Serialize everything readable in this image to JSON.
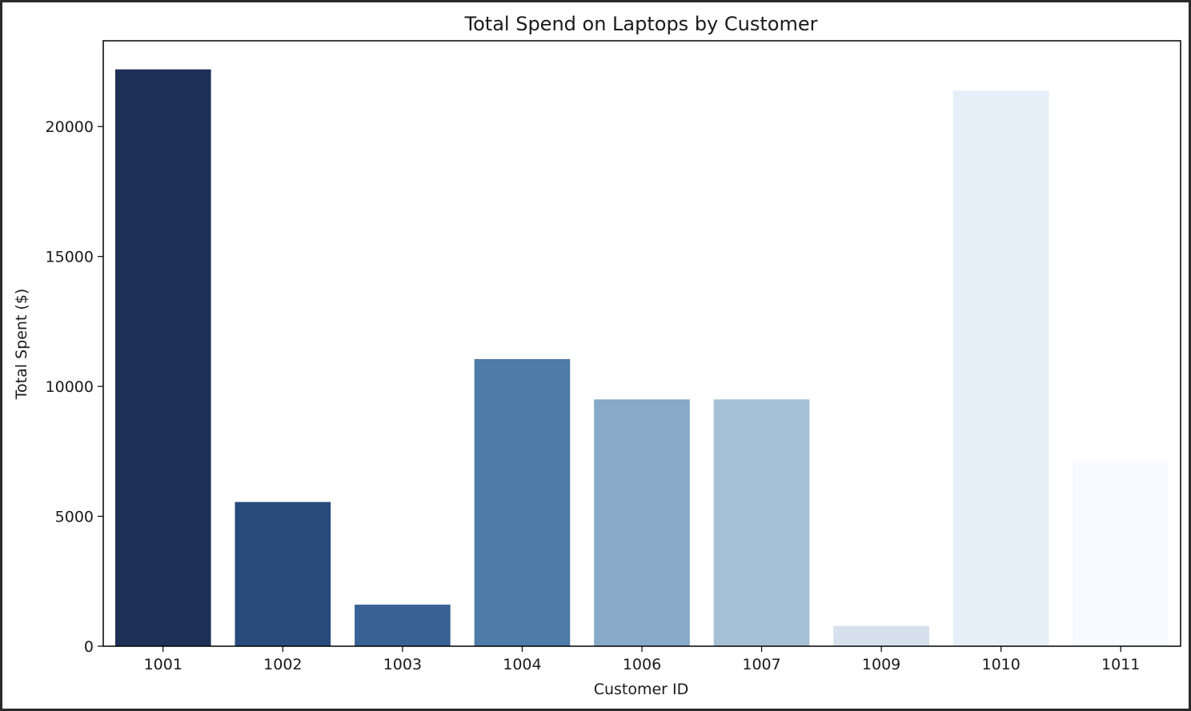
{
  "chart_data": {
    "type": "bar",
    "title": "Total Spend on Laptops by Customer",
    "xlabel": "Customer ID",
    "ylabel": "Total Spent ($)",
    "categories": [
      "1001",
      "1002",
      "1003",
      "1004",
      "1006",
      "1007",
      "1009",
      "1010",
      "1011"
    ],
    "values": [
      22200,
      5550,
      1600,
      11050,
      9500,
      9500,
      780,
      21380,
      7150
    ],
    "colors": [
      "#1f3057",
      "#284b7c",
      "#386294",
      "#4e7ca7",
      "#86aac7",
      "#a5c0d4",
      "#d6e1ed",
      "#e6eef8",
      "#f8faff"
    ],
    "ylim": [
      0,
      23300
    ],
    "yticks": [
      0,
      5000,
      10000,
      15000,
      20000
    ],
    "grid": false,
    "legend": "none"
  }
}
